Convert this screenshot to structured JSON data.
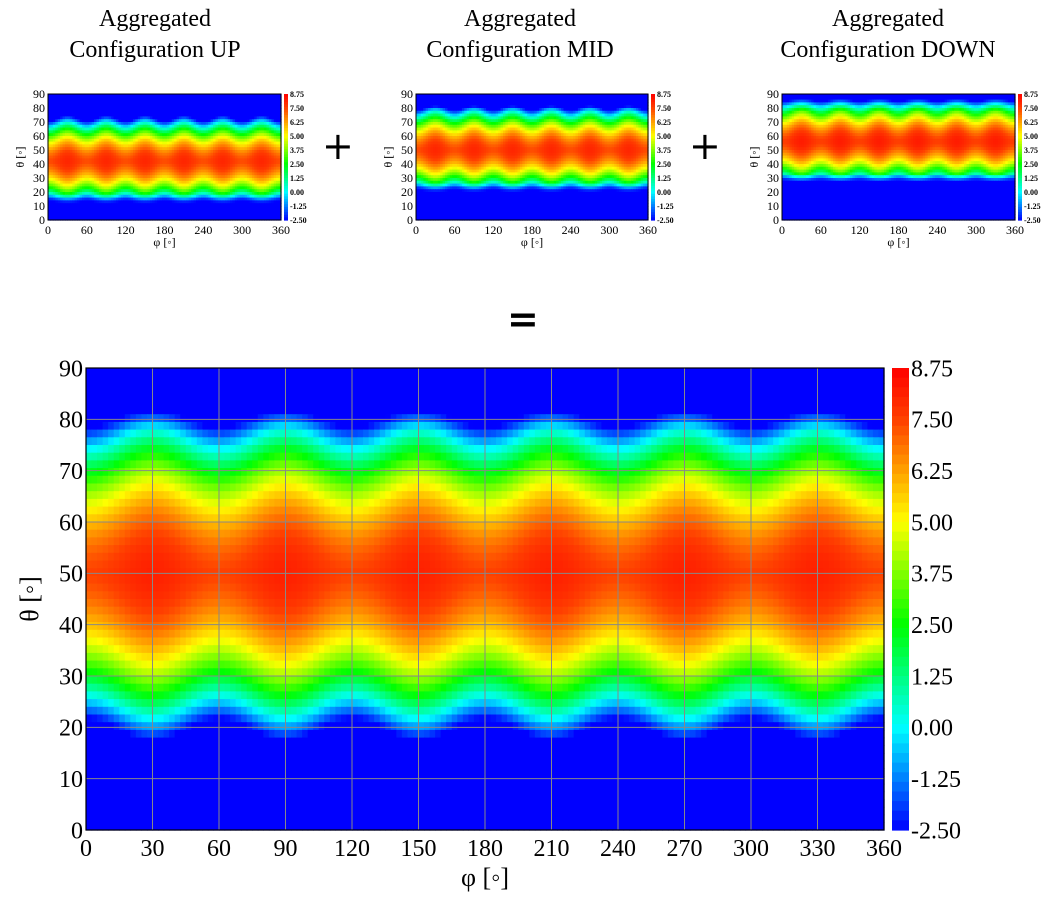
{
  "operators": {
    "plus": "+",
    "equals": "="
  },
  "colormap": [
    "#0000ff",
    "#0080ff",
    "#00ffff",
    "#00ff80",
    "#00ff00",
    "#80ff00",
    "#ffff00",
    "#ffa000",
    "#ff4000",
    "#ff0000"
  ],
  "chart_data": [
    {
      "type": "heatmap",
      "title_line1": "Aggregated",
      "title_line2": "Configuration UP",
      "xlabel": "φ [◦]",
      "ylabel": "θ [◦]",
      "xlim": [
        0,
        360
      ],
      "ylim": [
        0,
        90
      ],
      "xticks": [
        "0",
        "60",
        "120",
        "180",
        "240",
        "300",
        "360"
      ],
      "yticks": [
        "0",
        "10",
        "20",
        "30",
        "40",
        "50",
        "60",
        "70",
        "80",
        "90"
      ],
      "colorbar": [
        "8.75",
        "7.50",
        "6.25",
        "5.00",
        "3.75",
        "2.50",
        "1.25",
        "0.00",
        "-1.25",
        "-2.50"
      ],
      "vmin": -2.5,
      "vmax": 8.75,
      "lobes_per_revolution": 6,
      "peak_theta_deg": 42,
      "peak_value": 8.0,
      "floor_theta_deg": 12
    },
    {
      "type": "heatmap",
      "title_line1": "Aggregated",
      "title_line2": "Configuration MID",
      "xlabel": "φ [◦]",
      "ylabel": "θ [◦]",
      "xlim": [
        0,
        360
      ],
      "ylim": [
        0,
        90
      ],
      "xticks": [
        "0",
        "60",
        "120",
        "180",
        "240",
        "300",
        "360"
      ],
      "yticks": [
        "0",
        "10",
        "20",
        "30",
        "40",
        "50",
        "60",
        "70",
        "80",
        "90"
      ],
      "colorbar": [
        "8.75",
        "7.50",
        "6.25",
        "5.00",
        "3.75",
        "2.50",
        "1.25",
        "0.00",
        "-1.25",
        "-2.50"
      ],
      "vmin": -2.5,
      "vmax": 8.75,
      "lobes_per_revolution": 6,
      "peak_theta_deg": 50,
      "peak_value": 8.0,
      "floor_theta_deg": 20
    },
    {
      "type": "heatmap",
      "title_line1": "Aggregated",
      "title_line2": "Configuration DOWN",
      "xlabel": "φ [◦]",
      "ylabel": "θ [◦]",
      "xlim": [
        0,
        360
      ],
      "ylim": [
        0,
        90
      ],
      "xticks": [
        "0",
        "60",
        "120",
        "180",
        "240",
        "300",
        "360"
      ],
      "yticks": [
        "0",
        "10",
        "20",
        "30",
        "40",
        "50",
        "60",
        "70",
        "80",
        "90"
      ],
      "colorbar": [
        "8.75",
        "7.50",
        "6.25",
        "5.00",
        "3.75",
        "2.50",
        "1.25",
        "0.00",
        "-1.25",
        "-2.50"
      ],
      "vmin": -2.5,
      "vmax": 8.75,
      "lobes_per_revolution": 6,
      "peak_theta_deg": 56,
      "peak_value": 8.2,
      "floor_theta_deg": 27
    },
    {
      "type": "heatmap",
      "xlabel": "φ [◦]",
      "ylabel": "θ [◦]",
      "xlim": [
        0,
        360
      ],
      "ylim": [
        0,
        90
      ],
      "xticks": [
        "0",
        "30",
        "60",
        "90",
        "120",
        "150",
        "180",
        "210",
        "240",
        "270",
        "300",
        "330",
        "360"
      ],
      "yticks": [
        "0",
        "10",
        "20",
        "30",
        "40",
        "50",
        "60",
        "70",
        "80",
        "90"
      ],
      "colorbar": [
        "8.75",
        "7.50",
        "6.25",
        "5.00",
        "3.75",
        "2.50",
        "1.25",
        "0.00",
        "-1.25",
        "-2.50"
      ],
      "vmin": -2.5,
      "vmax": 8.75,
      "grid": true,
      "lobes_per_revolution": 6,
      "peak_theta_deg": 50,
      "peak_value": 8.1,
      "floor_theta_deg": 10
    }
  ]
}
